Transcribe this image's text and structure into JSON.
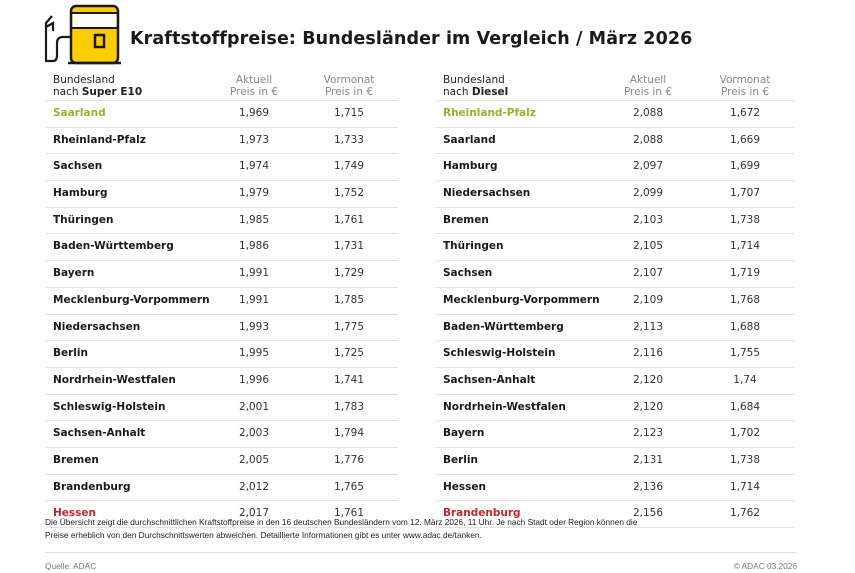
{
  "logo": {
    "icon": "fuel-pump-icon",
    "color": "#ffcc00"
  },
  "title": "Kraftstoffpreise: Bundesländer im Vergleich / März 2026",
  "colors": {
    "best": "#95b32a",
    "worst": "#c0272d"
  },
  "tables": [
    {
      "header": {
        "col1_line1": "Bundesland",
        "col1_line2_prefix": "nach ",
        "col1_line2_bold": "Super E10",
        "col2_line1": "Aktuell",
        "col2_line2": "Preis in €",
        "col3_line1": "Vormonat",
        "col3_line2": "Preis in €"
      },
      "rows": [
        [
          "Saarland",
          "1,969",
          "1,715"
        ],
        [
          "Rheinland-Pfalz",
          "1,973",
          "1,733"
        ],
        [
          "Sachsen",
          "1,974",
          "1,749"
        ],
        [
          "Hamburg",
          "1,979",
          "1,752"
        ],
        [
          "Thüringen",
          "1,985",
          "1,761"
        ],
        [
          "Baden-Württemberg",
          "1,986",
          "1,731"
        ],
        [
          "Bayern",
          "1,991",
          "1,729"
        ],
        [
          "Mecklenburg-Vorpommern",
          "1,991",
          "1,785"
        ],
        [
          "Niedersachsen",
          "1,993",
          "1,775"
        ],
        [
          "Berlin",
          "1,995",
          "1,725"
        ],
        [
          "Nordrhein-Westfalen",
          "1,996",
          "1,741"
        ],
        [
          "Schleswig-Holstein",
          "2,001",
          "1,783"
        ],
        [
          "Sachsen-Anhalt",
          "2,003",
          "1,794"
        ],
        [
          "Bremen",
          "2,005",
          "1,776"
        ],
        [
          "Brandenburg",
          "2,012",
          "1,765"
        ],
        [
          "Hessen",
          "2,017",
          "1,761"
        ]
      ]
    },
    {
      "header": {
        "col1_line1": "Bundesland",
        "col1_line2_prefix": "nach ",
        "col1_line2_bold": "Diesel",
        "col2_line1": "Aktuell",
        "col2_line2": "Preis in €",
        "col3_line1": "Vormonat",
        "col3_line2": "Preis in €"
      },
      "rows": [
        [
          "Rheinland-Pfalz",
          "2,088",
          "1,672"
        ],
        [
          "Saarland",
          "2,088",
          "1,669"
        ],
        [
          "Hamburg",
          "2,097",
          "1,699"
        ],
        [
          "Niedersachsen",
          "2,099",
          "1,707"
        ],
        [
          "Bremen",
          "2,103",
          "1,738"
        ],
        [
          "Thüringen",
          "2,105",
          "1,714"
        ],
        [
          "Sachsen",
          "2,107",
          "1,719"
        ],
        [
          "Mecklenburg-Vorpommern",
          "2,109",
          "1,768"
        ],
        [
          "Baden-Württemberg",
          "2,113",
          "1,688"
        ],
        [
          "Schleswig-Holstein",
          "2,116",
          "1,755"
        ],
        [
          "Sachsen-Anhalt",
          "2,120",
          "1,74"
        ],
        [
          "Nordrhein-Westfalen",
          "2,120",
          "1,684"
        ],
        [
          "Bayern",
          "2,123",
          "1,702"
        ],
        [
          "Berlin",
          "2,131",
          "1,738"
        ],
        [
          "Hessen",
          "2,136",
          "1,714"
        ],
        [
          "Brandenburg",
          "2,156",
          "1,762"
        ]
      ]
    }
  ],
  "footnote_line1": "Die Übersicht zeigt die durchschnittlichen Kraftstoffpreise in den 16 deutschen Bundesländern vom 12. März 2026, 11 Uhr. Je nach Stadt oder Region können die",
  "footnote_line2": "Preise erheblich von den Durchschnittswerten abweichen. Detaillierte Informationen gibt es unter www.adac.de/tanken.",
  "source": "Quelle: ADAC",
  "copyright": "© ADAC 03.2026"
}
